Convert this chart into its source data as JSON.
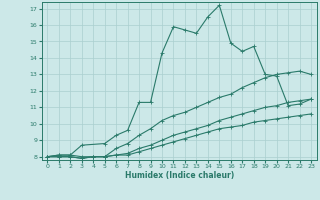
{
  "background_color": "#cce8e8",
  "grid_color": "#aacfcf",
  "line_color": "#2a7a6a",
  "xlabel": "Humidex (Indice chaleur)",
  "xlim": [
    -0.5,
    23.5
  ],
  "ylim": [
    7.8,
    17.4
  ],
  "yticks": [
    8,
    9,
    10,
    11,
    12,
    13,
    14,
    15,
    16,
    17
  ],
  "xticks": [
    0,
    1,
    2,
    3,
    4,
    5,
    6,
    7,
    8,
    9,
    10,
    11,
    12,
    13,
    14,
    15,
    16,
    17,
    18,
    19,
    20,
    21,
    22,
    23
  ],
  "series1_x": [
    0,
    1,
    2,
    3,
    5,
    6,
    7,
    8,
    9,
    10,
    11,
    12,
    13,
    14,
    15,
    16,
    17,
    18,
    19,
    20,
    21,
    22,
    23
  ],
  "series1_y": [
    8.0,
    8.1,
    8.1,
    8.7,
    8.8,
    9.3,
    9.6,
    11.3,
    11.3,
    14.3,
    15.9,
    15.7,
    15.5,
    16.5,
    17.2,
    14.9,
    14.4,
    14.7,
    13.0,
    12.9,
    11.1,
    11.2,
    11.5
  ],
  "series2_x": [
    0,
    1,
    2,
    3,
    4,
    5,
    6,
    7,
    8,
    9,
    10,
    11,
    12,
    13,
    14,
    15,
    16,
    17,
    18,
    19,
    20,
    21,
    22,
    23
  ],
  "series2_y": [
    8.0,
    8.1,
    8.1,
    8.0,
    8.0,
    8.0,
    8.5,
    8.8,
    9.3,
    9.7,
    10.2,
    10.5,
    10.7,
    11.0,
    11.3,
    11.6,
    11.8,
    12.2,
    12.5,
    12.8,
    13.0,
    13.1,
    13.2,
    13.0
  ],
  "series3_x": [
    0,
    1,
    2,
    3,
    4,
    5,
    6,
    7,
    8,
    9,
    10,
    11,
    12,
    13,
    14,
    15,
    16,
    17,
    18,
    19,
    20,
    21,
    22,
    23
  ],
  "series3_y": [
    8.0,
    8.0,
    8.0,
    7.9,
    8.0,
    8.0,
    8.1,
    8.2,
    8.5,
    8.7,
    9.0,
    9.3,
    9.5,
    9.7,
    9.9,
    10.2,
    10.4,
    10.6,
    10.8,
    11.0,
    11.1,
    11.3,
    11.4,
    11.5
  ],
  "series4_x": [
    0,
    1,
    2,
    3,
    4,
    5,
    6,
    7,
    8,
    9,
    10,
    11,
    12,
    13,
    14,
    15,
    16,
    17,
    18,
    19,
    20,
    21,
    22,
    23
  ],
  "series4_y": [
    8.0,
    8.0,
    8.0,
    7.9,
    8.0,
    8.0,
    8.1,
    8.1,
    8.3,
    8.5,
    8.7,
    8.9,
    9.1,
    9.3,
    9.5,
    9.7,
    9.8,
    9.9,
    10.1,
    10.2,
    10.3,
    10.4,
    10.5,
    10.6
  ],
  "marker_size": 1.8,
  "line_width": 0.8
}
